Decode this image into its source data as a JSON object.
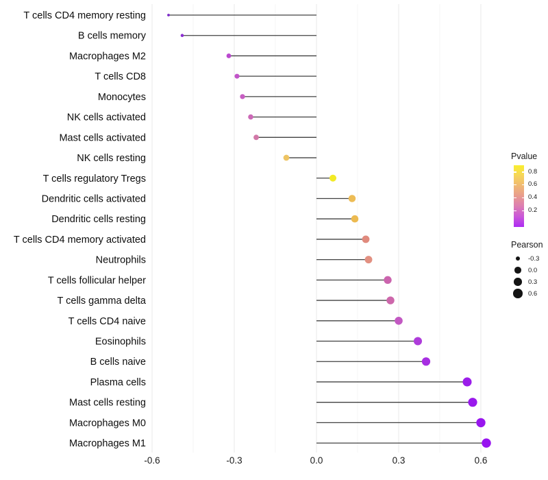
{
  "chart_data": {
    "type": "lollipop",
    "orientation": "horizontal",
    "title": "",
    "xlabel": "",
    "ylabel": "",
    "baseline": 0,
    "xlim": [
      -0.66,
      0.66
    ],
    "grid": "vertical-only",
    "categories": [
      "T cells CD4 memory resting",
      "B cells memory",
      "Macrophages M2",
      "T cells CD8",
      "Monocytes",
      "NK cells activated",
      "Mast cells activated",
      "NK cells resting",
      "T cells regulatory  Tregs",
      "Dendritic cells activated",
      "Dendritic cells resting",
      "T cells CD4 memory activated",
      "Neutrophils",
      "T cells follicular helper",
      "T cells gamma delta",
      "T cells CD4 naive",
      "Eosinophils",
      "B cells naive",
      "Plasma cells",
      "Mast cells resting",
      "Macrophages M0",
      "Macrophages M1"
    ],
    "series": [
      {
        "name": "Pearson",
        "values": [
          -0.54,
          -0.49,
          -0.32,
          -0.29,
          -0.27,
          -0.24,
          -0.22,
          -0.11,
          0.06,
          0.13,
          0.14,
          0.18,
          0.19,
          0.26,
          0.27,
          0.3,
          0.37,
          0.4,
          0.55,
          0.57,
          0.6,
          0.62
        ],
        "point_colors": [
          "#7b28c8",
          "#8c2ed2",
          "#bb49cf",
          "#c254c9",
          "#c75ec2",
          "#cc69b7",
          "#d278a8",
          "#eec463",
          "#f2ea25",
          "#edbc55",
          "#ecba50",
          "#e08a7d",
          "#e29081",
          "#cb64ae",
          "#cd67ab",
          "#c258c2",
          "#ae3cda",
          "#a72ee2",
          "#9b1dea",
          "#9919ec",
          "#9816ee",
          "#9713ef"
        ]
      }
    ],
    "x_ticks": [
      {
        "label": "-0.6",
        "value": -0.6
      },
      {
        "label": "-0.3",
        "value": -0.3
      },
      {
        "label": "0.0",
        "value": 0.0
      },
      {
        "label": "0.3",
        "value": 0.3
      },
      {
        "label": "0.6",
        "value": 0.6
      }
    ]
  },
  "legend_pvalue": {
    "title": "Pvalue",
    "ticks": [
      "0.8",
      "0.6",
      "0.4",
      "0.2"
    ],
    "gradient": [
      "#f9ee2f",
      "#f6d55a",
      "#f0b873",
      "#e89b8f",
      "#dc7db3",
      "#c957d9",
      "#ad2cf3"
    ]
  },
  "legend_pearson": {
    "title": "Pearson",
    "dot_color": "#141414",
    "entries": [
      {
        "label": "-0.3",
        "value": -0.3
      },
      {
        "label": "0.0",
        "value": 0.0
      },
      {
        "label": "0.3",
        "value": 0.3
      },
      {
        "label": "0.6",
        "value": 0.6
      }
    ]
  },
  "colors": {
    "background": "#ffffff",
    "stem": "#404040",
    "grid_major": "#e8e8e8",
    "grid_minor": "#f4f4f4",
    "text": "#0d0d0d"
  }
}
